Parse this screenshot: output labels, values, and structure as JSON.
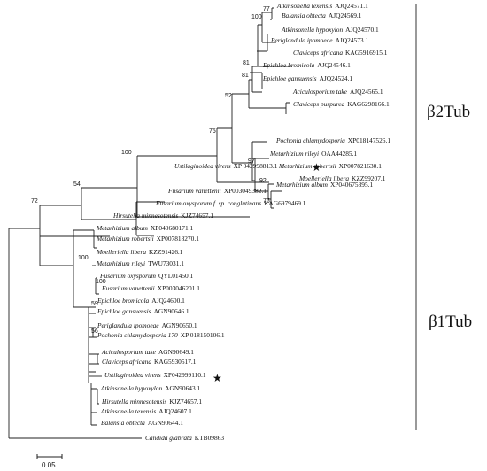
{
  "clades": {
    "b2": "β2Tub",
    "b1": "β1Tub"
  },
  "scale_label": "0.05",
  "b2_leaves": [
    {
      "genus": "Atkinsonella texensis",
      "acc": "AJQ24571.1"
    },
    {
      "genus": "Balansia obtecta",
      "acc": "AJQ24569.1"
    },
    {
      "genus": "Atkinsonella hypoxylon",
      "acc": "AJQ24570.1"
    },
    {
      "genus": "Periglandula ipomoeae",
      "acc": "AJQ24573.1"
    },
    {
      "genus": "Claviceps africana",
      "acc": "KAG5916915.1"
    },
    {
      "genus": "Epichloe bromicola",
      "acc": "AJQ24546.1"
    },
    {
      "genus": "Epichloe gansuensis",
      "acc": "AJQ24524.1"
    },
    {
      "genus": "Aciculosporium take",
      "acc": "AJQ24565.1"
    },
    {
      "genus": "Claviceps purpurea",
      "acc": "KAG6298166.1"
    },
    {
      "genus": "Pochonia chlamydosporia",
      "acc": "XP018147526.1"
    },
    {
      "genus": "Metarhizium rileyi",
      "acc": "OAA44285.1"
    },
    {
      "genus": "Metarhizium robertsii",
      "acc": "XP007821630.1"
    },
    {
      "genus": "Metarhizium album",
      "acc": "XP040675395.1"
    },
    {
      "genus": "Ustilaginoidea virens",
      "acc": "XP 042998813.1"
    },
    {
      "genus": "Moelleriella libera",
      "acc": "KZZ99207.1"
    },
    {
      "genus": "Fusarium vanettenii",
      "acc": "XP003049382.1"
    },
    {
      "genus": "Fusarium oxysporum f. sp. conglutinans",
      "acc": "KAG6979469.1"
    },
    {
      "genus": "Hirsutella minnesotensis",
      "acc": "KJZ74657.1"
    }
  ],
  "b1_leaves": [
    {
      "genus": "Metarhizium album",
      "acc": "XP040680171.1"
    },
    {
      "genus": "Metarhizium robertsii",
      "acc": "XP007818270.1"
    },
    {
      "genus": "Moelleriella libera",
      "acc": "KZZ91426.1"
    },
    {
      "genus": "Metarhizium rileyi",
      "acc": "TWU73031.1"
    },
    {
      "genus": "Fusarium oxysporum",
      "acc": "QYL01450.1"
    },
    {
      "genus": "Fusarium vanettenii",
      "acc": "XP003046201.1"
    },
    {
      "genus": "Epichloe bromicola",
      "acc": "AJQ24600.1"
    },
    {
      "genus": "Epichloe gansuensis",
      "acc": "AGN90646.1"
    },
    {
      "genus": "Periglandula ipomoeae",
      "acc": "AGN90650.1"
    },
    {
      "genus": "Pochonia chlamydosporia 170",
      "acc": "XP 018150106.1"
    },
    {
      "genus": "Aciculosporium take",
      "acc": "AGN90649.1"
    },
    {
      "genus": "Claviceps africana",
      "acc": "KAG5930517.1"
    },
    {
      "genus": "Ustilaginoidea virens",
      "acc": "XP042999110.1"
    },
    {
      "genus": "Atkinsonella hypoxylon",
      "acc": "AGN90643.1"
    },
    {
      "genus": "Hirsutella minnesotensis",
      "acc": "KJZ74657.1"
    },
    {
      "genus": "Atkinsonella texensis",
      "acc": "AJQ24607.1"
    },
    {
      "genus": "Balansia obtecta",
      "acc": "AGN90644.1"
    }
  ],
  "outgroup": {
    "genus": "Candida glabrata",
    "acc": "KTB09863"
  },
  "bootstrap": [
    "77",
    "100",
    "81",
    "81",
    "52",
    "97",
    "92",
    "75",
    "75",
    "100",
    "54",
    "72",
    "100",
    "100",
    "59",
    "56"
  ],
  "star": "★"
}
